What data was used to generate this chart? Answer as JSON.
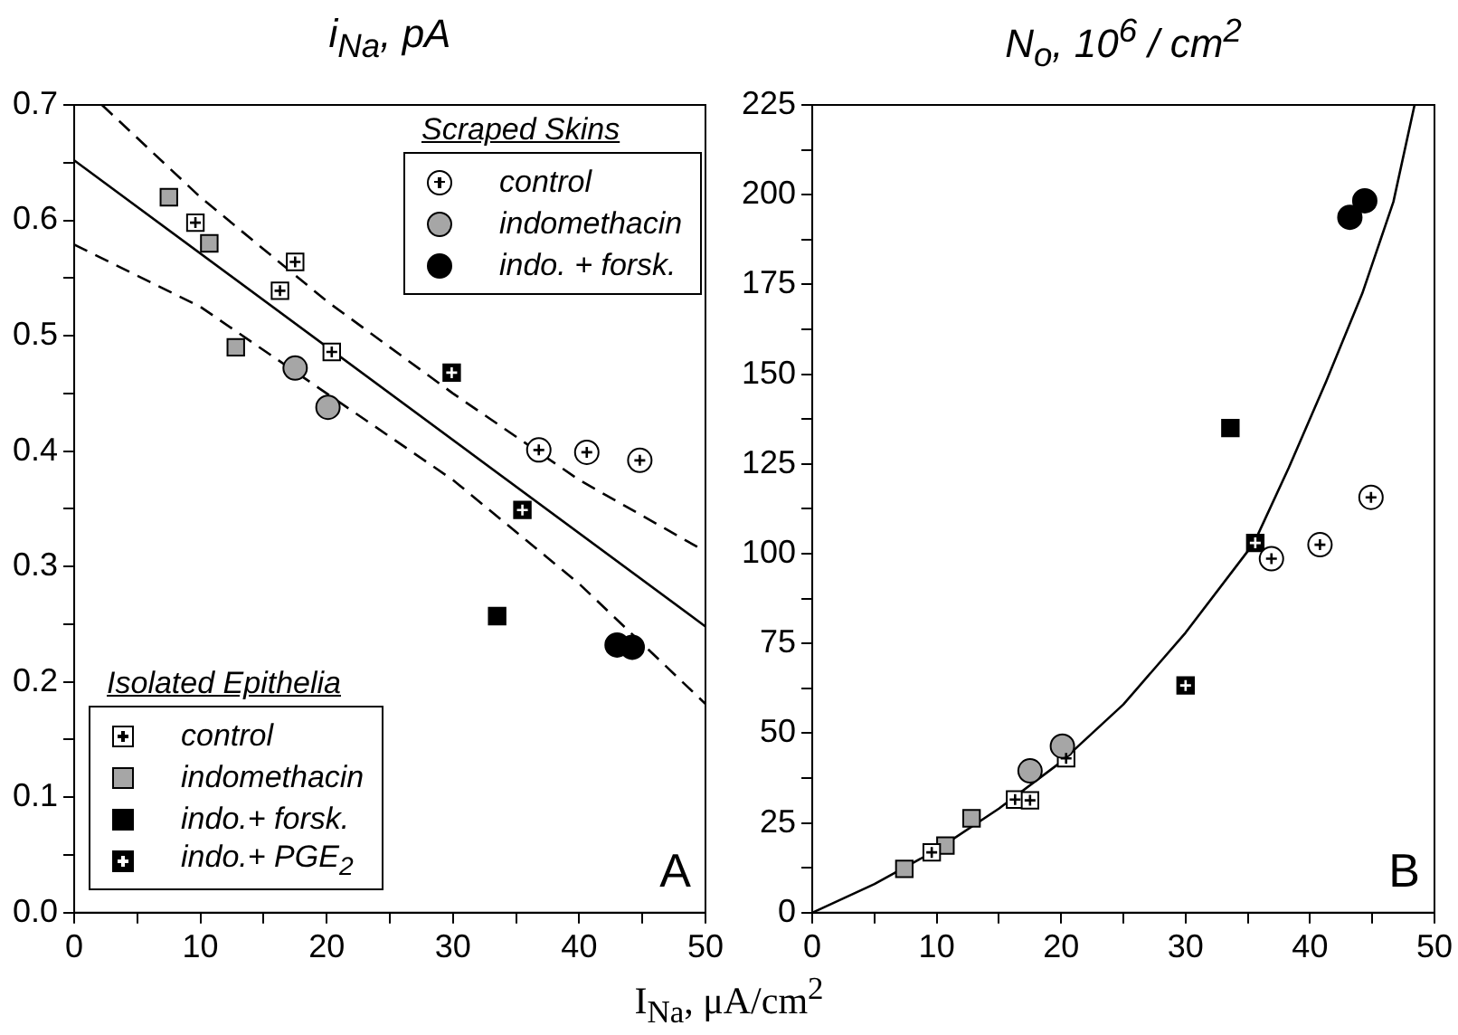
{
  "chart_data": [
    {
      "type": "scatter",
      "title": "i$_{Na}$, pA",
      "xlabel": "I$_{Na}$, μA/cm$^{2}$",
      "xlim": [
        0,
        50
      ],
      "xticks": [
        0,
        {
          "value": 5,
          "label": null
        },
        10,
        {
          "value": 15,
          "label": null
        },
        20,
        {
          "value": 25,
          "label": null
        },
        30,
        {
          "value": 35,
          "label": null
        },
        40,
        {
          "value": 45,
          "label": null
        },
        50
      ],
      "ylim": [
        0,
        0.7
      ],
      "yticks": [
        {
          "value": 0,
          "label": "0.0"
        },
        {
          "value": 0.05,
          "label": null
        },
        0.1,
        {
          "value": 0.15,
          "label": null
        },
        0.2,
        {
          "value": 0.25,
          "label": null
        },
        0.3,
        {
          "value": 0.35,
          "label": null
        },
        0.4,
        {
          "value": 0.45,
          "label": null
        },
        0.5,
        {
          "value": 0.55,
          "label": null
        },
        0.6,
        {
          "value": 0.65,
          "label": null
        },
        0.7
      ],
      "grid": false,
      "legend": [
        "top right",
        "bottom left"
      ],
      "legend_title": [
        "Scraped Skins",
        "Isolated Epithelia"
      ],
      "annotations": [
        "A"
      ],
      "series": [
        {
          "name": "control",
          "marker": "circle-cross",
          "color": "#ffffff",
          "x": [
            36.8,
            40.6,
            44.8
          ],
          "values": [
            0.401,
            0.399,
            0.392
          ]
        },
        {
          "name": "indomethacin",
          "marker": "circle",
          "color": "#a6a6a6",
          "x": [
            17.5,
            20.1
          ],
          "values": [
            0.472,
            0.438
          ]
        },
        {
          "name": "indo. + forsk.",
          "marker": "circle",
          "color": "#000000",
          "x": [
            43.0,
            44.2
          ],
          "values": [
            0.232,
            0.23
          ]
        },
        {
          "name": "control",
          "marker": "square-cross",
          "color": "#ffffff",
          "x": [
            9.6,
            16.3,
            17.5,
            20.4
          ],
          "values": [
            0.598,
            0.539,
            0.564,
            0.486
          ]
        },
        {
          "name": "indomethacin",
          "marker": "square",
          "color": "#a6a6a6",
          "x": [
            7.5,
            10.7,
            12.8
          ],
          "values": [
            0.62,
            0.58,
            0.49
          ]
        },
        {
          "name": "indo.+ forsk.",
          "marker": "square",
          "color": "#000000",
          "x": [
            33.5
          ],
          "values": [
            0.257
          ]
        },
        {
          "name": "indo.+ PGE$_{2}$",
          "marker": "square-cross",
          "color": "#000000",
          "x": [
            29.9,
            35.5
          ],
          "values": [
            0.468,
            0.349
          ]
        },
        {
          "type": "line",
          "marker": "none",
          "line_style": "solid",
          "color": "#000000",
          "x": [
            0,
            50
          ],
          "values": [
            0.652,
            0.248
          ]
        },
        {
          "type": "line",
          "marker": "none",
          "line_style": "dashed",
          "color": "#000000",
          "x": [
            2.2,
            10,
            20,
            30,
            40,
            50
          ],
          "values": [
            0.7,
            0.62,
            0.53,
            0.45,
            0.375,
            0.313
          ]
        },
        {
          "type": "line",
          "marker": "none",
          "line_style": "dashed",
          "color": "#000000",
          "x": [
            0,
            10,
            20,
            30,
            40,
            50
          ],
          "values": [
            0.579,
            0.525,
            0.45,
            0.375,
            0.285,
            0.181
          ]
        }
      ]
    },
    {
      "type": "scatter",
      "title": "N$_{o}$, 10$^{6}$ / cm$^{2}$",
      "xlim": [
        0,
        50
      ],
      "xticks": [
        0,
        {
          "value": 5,
          "label": null
        },
        10,
        {
          "value": 15,
          "label": null
        },
        20,
        {
          "value": 25,
          "label": null
        },
        30,
        {
          "value": 35,
          "label": null
        },
        40,
        {
          "value": 45,
          "label": null
        },
        50
      ],
      "ylim": [
        0,
        225
      ],
      "yticks": [
        0,
        {
          "value": 12.5,
          "label": null
        },
        25,
        {
          "value": 37.5,
          "label": null
        },
        50,
        {
          "value": 62.5,
          "label": null
        },
        75,
        {
          "value": 87.5,
          "label": null
        },
        100,
        {
          "value": 112.5,
          "label": null
        },
        125,
        {
          "value": 137.5,
          "label": null
        },
        150,
        {
          "value": 162.5,
          "label": null
        },
        175,
        {
          "value": 187.5,
          "label": null
        },
        200,
        {
          "value": 212.5,
          "label": null
        },
        225
      ],
      "grid": false,
      "legend": false,
      "annotations": [
        "B"
      ],
      "series": [
        {
          "marker": "circle-cross",
          "color": "#ffffff",
          "x": [
            36.9,
            40.8,
            44.9
          ],
          "values": [
            98.6,
            102.5,
            115.7
          ]
        },
        {
          "marker": "circle",
          "color": "#a6a6a6",
          "x": [
            17.5,
            20.1
          ],
          "values": [
            39.5,
            46.4
          ]
        },
        {
          "marker": "circle",
          "color": "#000000",
          "x": [
            43.2,
            44.4
          ],
          "values": [
            193.7,
            198.3
          ]
        },
        {
          "marker": "square-cross",
          "color": "#ffffff",
          "x": [
            9.6,
            16.3,
            17.5,
            20.4
          ],
          "values": [
            16.8,
            31.5,
            31.3,
            43
          ]
        },
        {
          "marker": "square",
          "color": "#a6a6a6",
          "x": [
            7.4,
            10.7,
            12.8
          ],
          "values": [
            12.2,
            18.7,
            26.3
          ]
        },
        {
          "marker": "square",
          "color": "#000000",
          "x": [
            33.6
          ],
          "values": [
            135
          ]
        },
        {
          "marker": "square-cross",
          "color": "#000000",
          "x": [
            30,
            35.6
          ],
          "values": [
            63.3,
            103
          ]
        },
        {
          "type": "line",
          "marker": "none",
          "line_style": "solid",
          "color": "#000000",
          "x": [
            0,
            5,
            10,
            15,
            20,
            25,
            30,
            35.5,
            38.3,
            41.3,
            44.2,
            46.7,
            48.4
          ],
          "values": [
            0,
            8,
            17.5,
            29,
            42,
            58,
            78,
            103,
            124,
            148,
            172.5,
            198,
            225
          ]
        }
      ]
    }
  ]
}
